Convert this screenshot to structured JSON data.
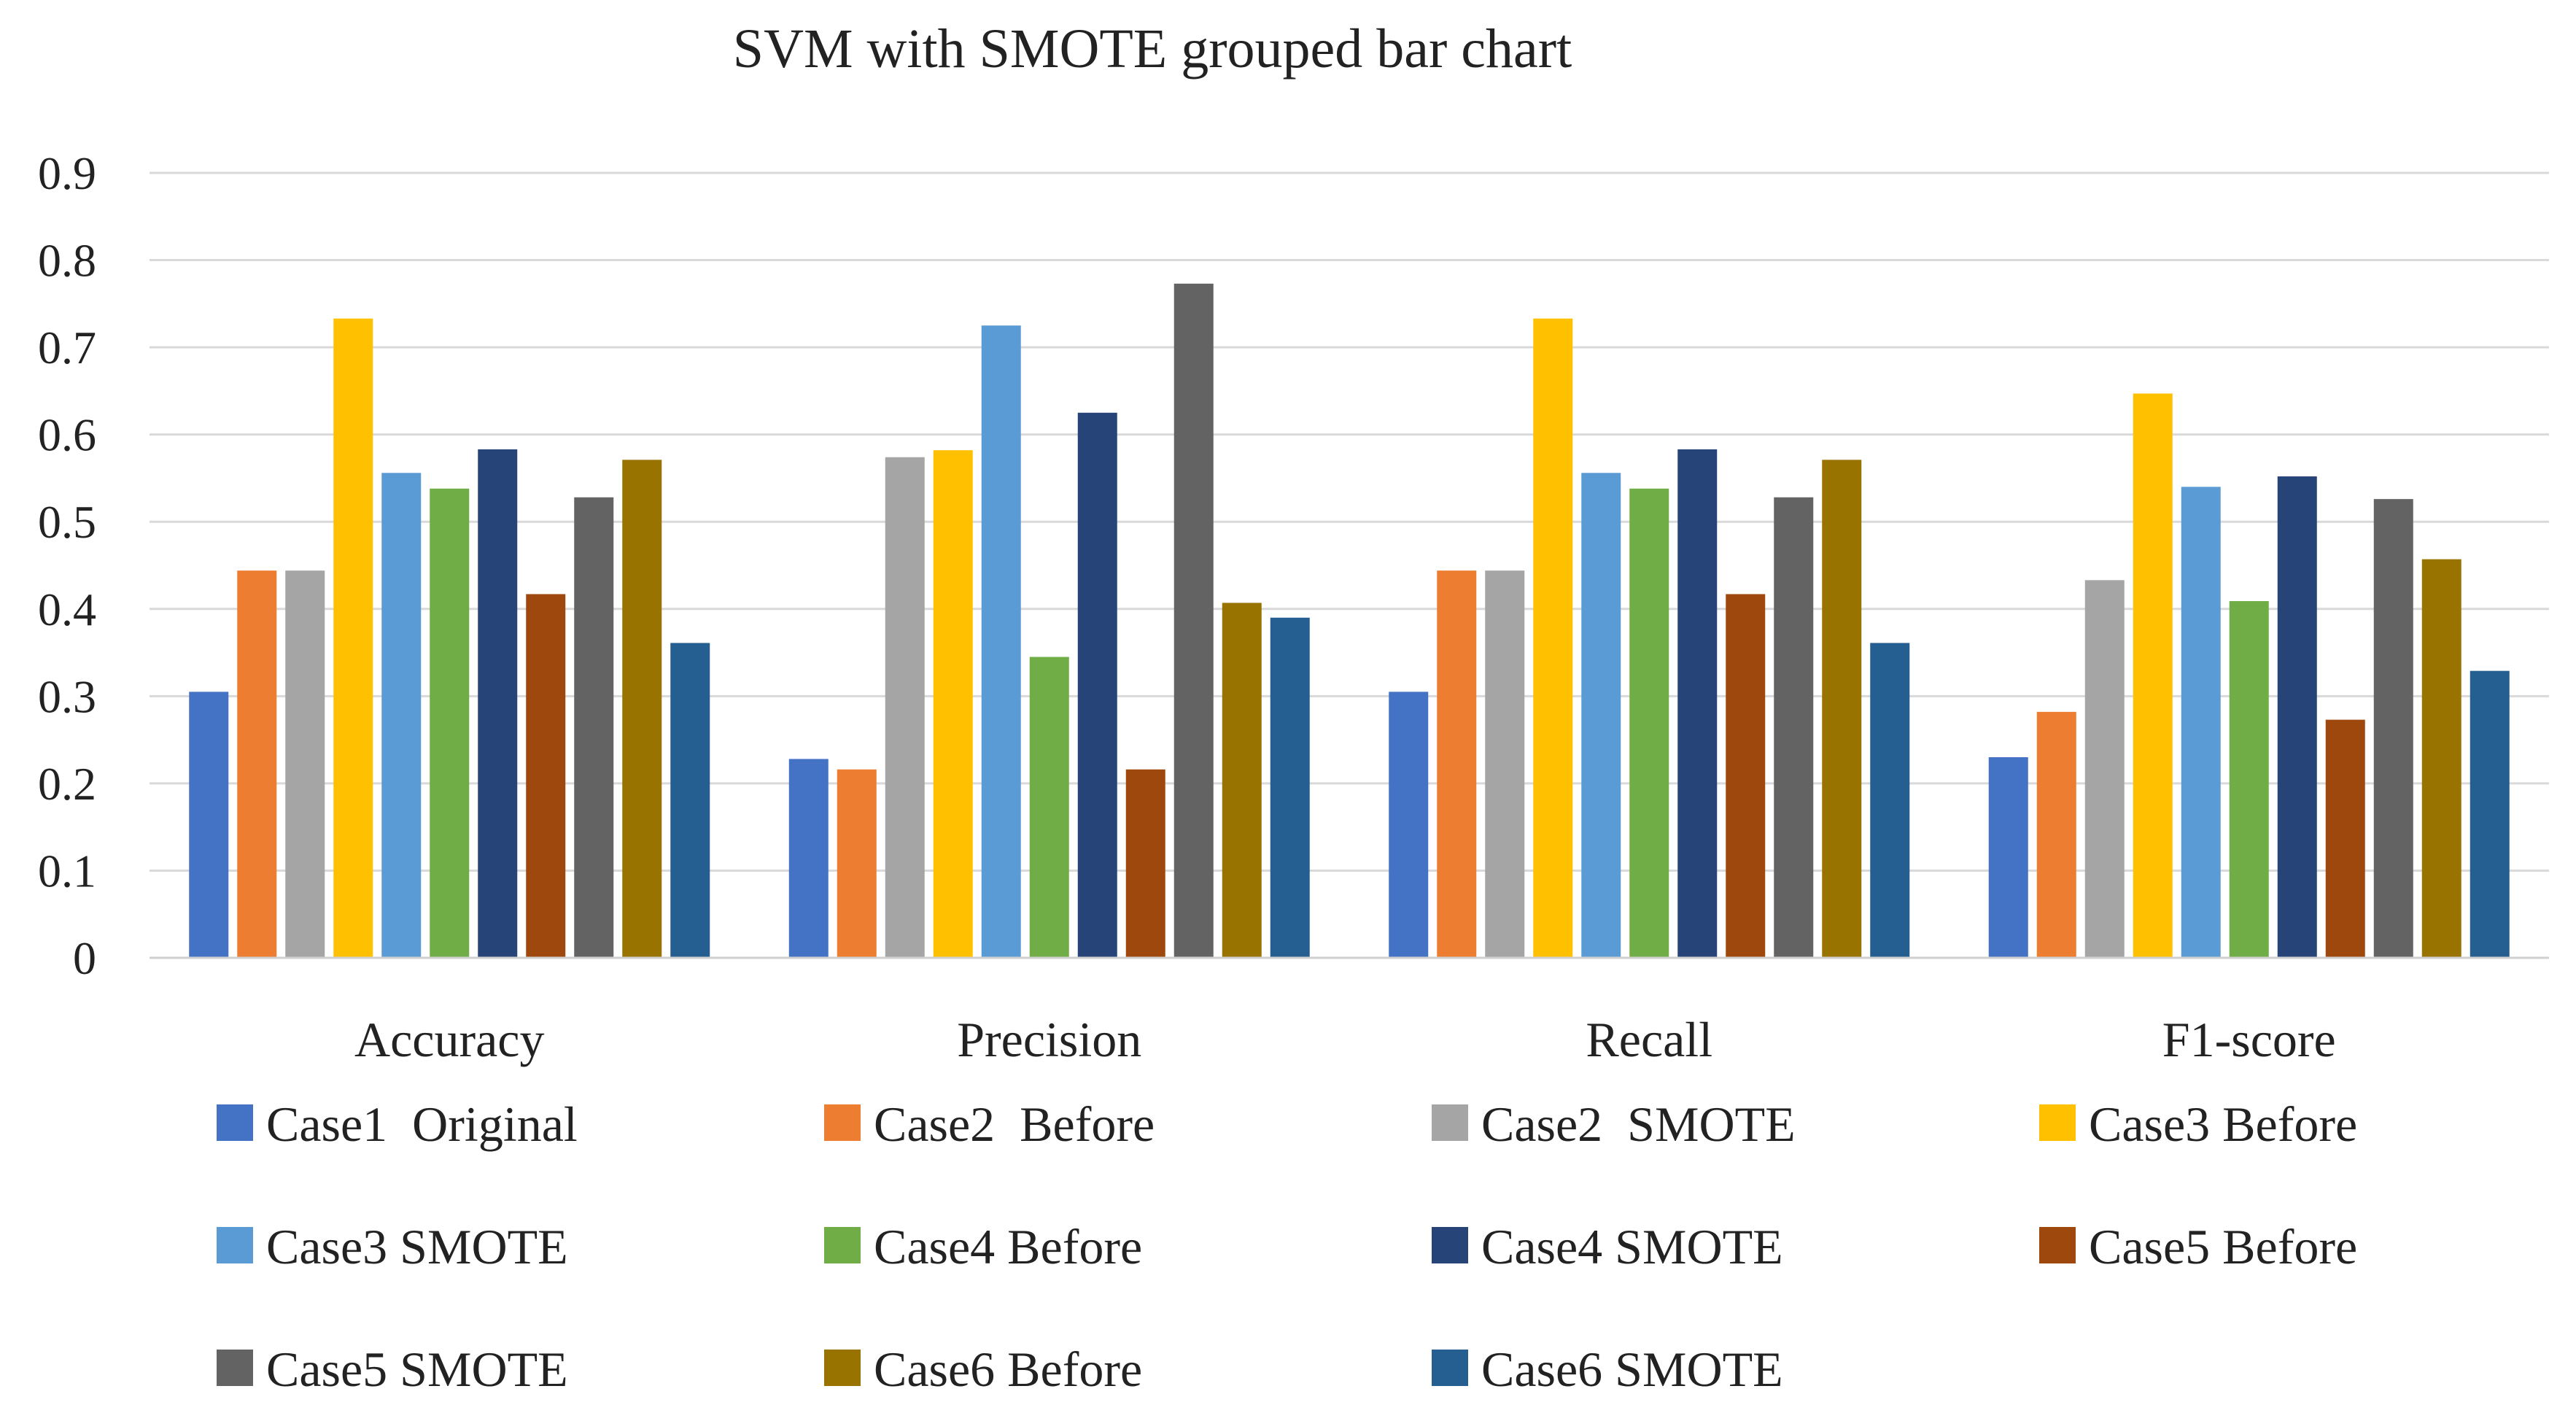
{
  "chart_data": {
    "type": "bar",
    "title": "SVM with SMOTE grouped bar chart",
    "xlabel": "",
    "ylabel": "",
    "ylim": [
      0,
      0.9
    ],
    "y_ticks": [
      "0",
      "0.1",
      "0.2",
      "0.3",
      "0.4",
      "0.5",
      "0.6",
      "0.7",
      "0.8",
      "0.9"
    ],
    "grid": true,
    "legend_position": "bottom",
    "categories": [
      "Accuracy",
      "Precision",
      "Recall",
      "F1-score"
    ],
    "series": [
      {
        "name": "Case1  Original",
        "color": "#4472C4",
        "values": [
          0.305,
          0.228,
          0.305,
          0.23
        ]
      },
      {
        "name": "Case2  Before",
        "color": "#ED7D31",
        "values": [
          0.444,
          0.216,
          0.444,
          0.282
        ]
      },
      {
        "name": "Case2  SMOTE",
        "color": "#A5A5A5",
        "values": [
          0.444,
          0.574,
          0.444,
          0.433
        ]
      },
      {
        "name": "Case3 Before",
        "color": "#FFC000",
        "values": [
          0.733,
          0.582,
          0.733,
          0.647
        ]
      },
      {
        "name": "Case3 SMOTE",
        "color": "#5B9BD5",
        "values": [
          0.556,
          0.725,
          0.556,
          0.54
        ]
      },
      {
        "name": "Case4 Before",
        "color": "#70AD47",
        "values": [
          0.538,
          0.345,
          0.538,
          0.409
        ]
      },
      {
        "name": "Case4 SMOTE",
        "color": "#264478",
        "values": [
          0.583,
          0.625,
          0.583,
          0.552
        ]
      },
      {
        "name": "Case5 Before",
        "color": "#9E480E",
        "values": [
          0.417,
          0.216,
          0.417,
          0.273
        ]
      },
      {
        "name": "Case5 SMOTE",
        "color": "#636363",
        "values": [
          0.528,
          0.773,
          0.528,
          0.526
        ]
      },
      {
        "name": "Case6 Before",
        "color": "#997300",
        "values": [
          0.571,
          0.407,
          0.571,
          0.457
        ]
      },
      {
        "name": "Case6 SMOTE",
        "color": "#255E91",
        "values": [
          0.361,
          0.39,
          0.361,
          0.329
        ]
      }
    ]
  }
}
